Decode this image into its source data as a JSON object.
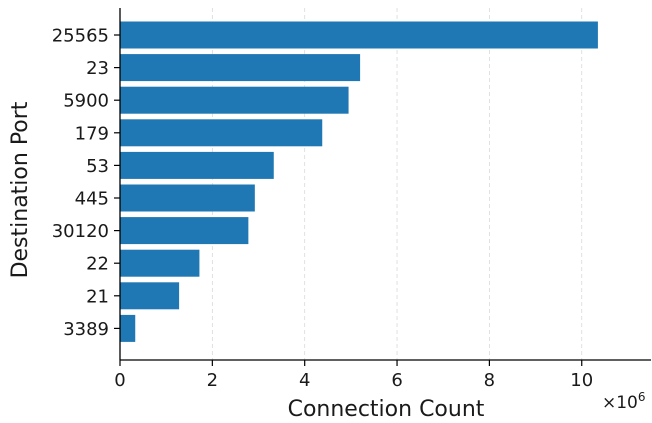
{
  "chart_data": {
    "type": "bar",
    "orientation": "horizontal",
    "categories": [
      "25565",
      "23",
      "5900",
      "179",
      "53",
      "445",
      "30120",
      "22",
      "21",
      "3389"
    ],
    "values": [
      10.35,
      5.2,
      4.95,
      4.38,
      3.33,
      2.92,
      2.78,
      1.72,
      1.28,
      0.33
    ],
    "xlabel": "Connection Count",
    "ylabel": "Destination Port",
    "x_multiplier": "×10",
    "x_multiplier_exp": "6",
    "xlim": [
      0,
      11.5
    ],
    "x_ticks": [
      0,
      2,
      4,
      6,
      8,
      10
    ],
    "grid": "x-dashed",
    "bar_color": "#1f77b4"
  }
}
